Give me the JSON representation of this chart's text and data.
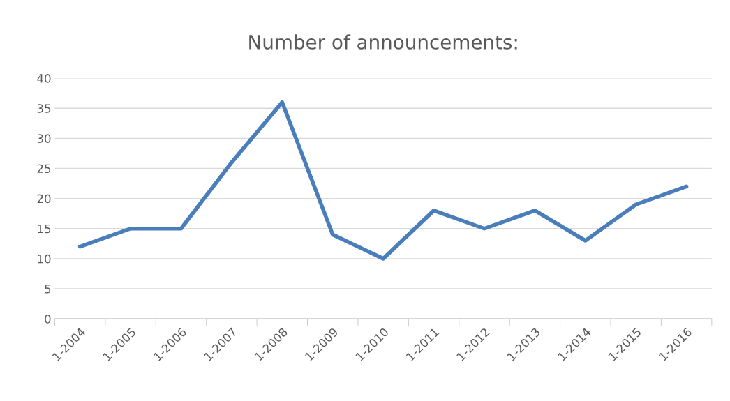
{
  "chart_data": {
    "type": "line",
    "title": "Number of announcements:",
    "categories": [
      "1-2004",
      "1-2005",
      "1-2006",
      "1-2007",
      "1-2008",
      "1-2009",
      "1-2010",
      "1-2011",
      "1-2012",
      "1-2013",
      "1-2014",
      "1-2015",
      "1-2016"
    ],
    "series": [
      {
        "color": "#4a7ebb",
        "values": [
          12,
          15,
          15,
          26,
          36,
          14,
          10,
          18,
          15,
          18,
          13,
          19,
          22
        ]
      }
    ],
    "ylim": [
      0,
      40
    ],
    "yticks": [
      0,
      5,
      10,
      15,
      20,
      25,
      30,
      35,
      40
    ],
    "grid": "y",
    "legend": false,
    "marker": "none",
    "line_style": "solid"
  }
}
